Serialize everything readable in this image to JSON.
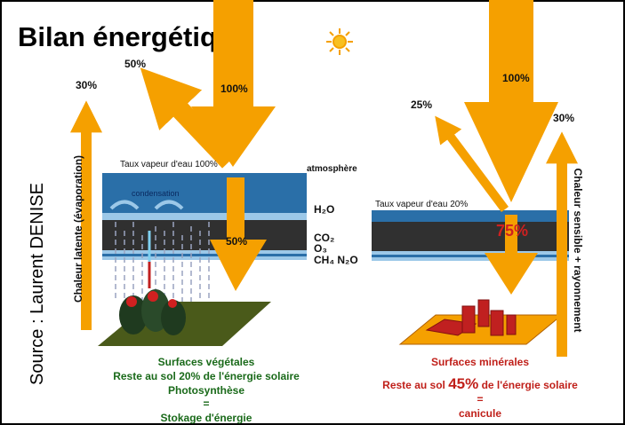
{
  "title": "Bilan énergétique",
  "source": "Source : Laurent DENISE",
  "left": {
    "latent_pct": "30%",
    "reflected_pct": "50%",
    "incoming_pct": "100%",
    "latent_label": "Chaleur latente (évaporation)",
    "vapour": "Taux vapeur d'eau 100%",
    "atmosphere": "atmosphère",
    "condensation": "condensation",
    "gases": [
      "H₂O",
      "CO₂",
      "O₃",
      "CH₄ N₂O"
    ],
    "ground_pct": "50%",
    "caption": [
      "Surfaces végétales",
      "Reste au sol 20% de l'énergie solaire",
      "Photosynthèse",
      "=",
      "Stokage d'énergie"
    ]
  },
  "right": {
    "incoming_pct": "100%",
    "reflected_pct": "25%",
    "sensible_pct": "30%",
    "sensible_label": "Chaleur sensible + rayonnement",
    "vapour": "Taux vapeur d'eau 20%",
    "ground_pct": "75%",
    "caption_title": "Surfaces minérales",
    "caption_line": {
      "before": "Reste au sol ",
      "emphasis": "45%",
      "after": " de l'énergie solaire"
    },
    "caption_equals": "=",
    "caption_result": "canicule"
  }
}
